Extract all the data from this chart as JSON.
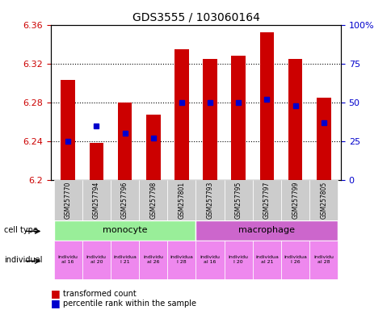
{
  "title": "GDS3555 / 103060164",
  "samples": [
    "GSM257770",
    "GSM257794",
    "GSM257796",
    "GSM257798",
    "GSM257801",
    "GSM257793",
    "GSM257795",
    "GSM257797",
    "GSM257799",
    "GSM257805"
  ],
  "bar_tops": [
    6.303,
    6.238,
    6.28,
    6.267,
    6.335,
    6.325,
    6.328,
    6.352,
    6.325,
    6.285
  ],
  "bar_bottom": 6.2,
  "percentile_ranks": [
    25,
    35,
    30,
    27,
    50,
    50,
    50,
    52,
    48,
    37
  ],
  "ylim_left": [
    6.2,
    6.36
  ],
  "ylim_right": [
    0,
    100
  ],
  "yticks_left": [
    6.2,
    6.24,
    6.28,
    6.32,
    6.36
  ],
  "yticks_right": [
    0,
    25,
    50,
    75,
    100
  ],
  "ytick_labels_right": [
    "0",
    "25",
    "50",
    "75",
    "100%"
  ],
  "cell_types": [
    "monocyte",
    "monocyte",
    "monocyte",
    "monocyte",
    "monocyte",
    "macrophage",
    "macrophage",
    "macrophage",
    "macrophage",
    "macrophage"
  ],
  "individuals": [
    "individual 16",
    "individual 20",
    "individual 21",
    "individual 26",
    "individual 28",
    "individual 16",
    "l 20",
    "individual 21",
    "l 26",
    "individual 28"
  ],
  "individuals_short": [
    "individu\nal 16",
    "individu\nal 20",
    "individua\nl 21",
    "individu\nal 26",
    "individua\nl 28",
    "individu\nal 16",
    "individu\nl 20",
    "individua\nal 21",
    "individua\nl 26",
    "individu\nal 28"
  ],
  "bar_color": "#cc0000",
  "dot_color": "#0000cc",
  "monocyte_color": "#99ee99",
  "macrophage_color": "#cc66cc",
  "individual_colors": [
    "#ffaaff",
    "#ffaaff",
    "#ffaaff",
    "#ffaaff",
    "#ffaaff",
    "#ffaaff",
    "#ffaaff",
    "#ffaaff",
    "#ffaaff",
    "#ffaaff"
  ],
  "sample_bg_color": "#cccccc",
  "grid_color": "black",
  "left_axis_color": "#cc0000",
  "right_axis_color": "#0000cc"
}
